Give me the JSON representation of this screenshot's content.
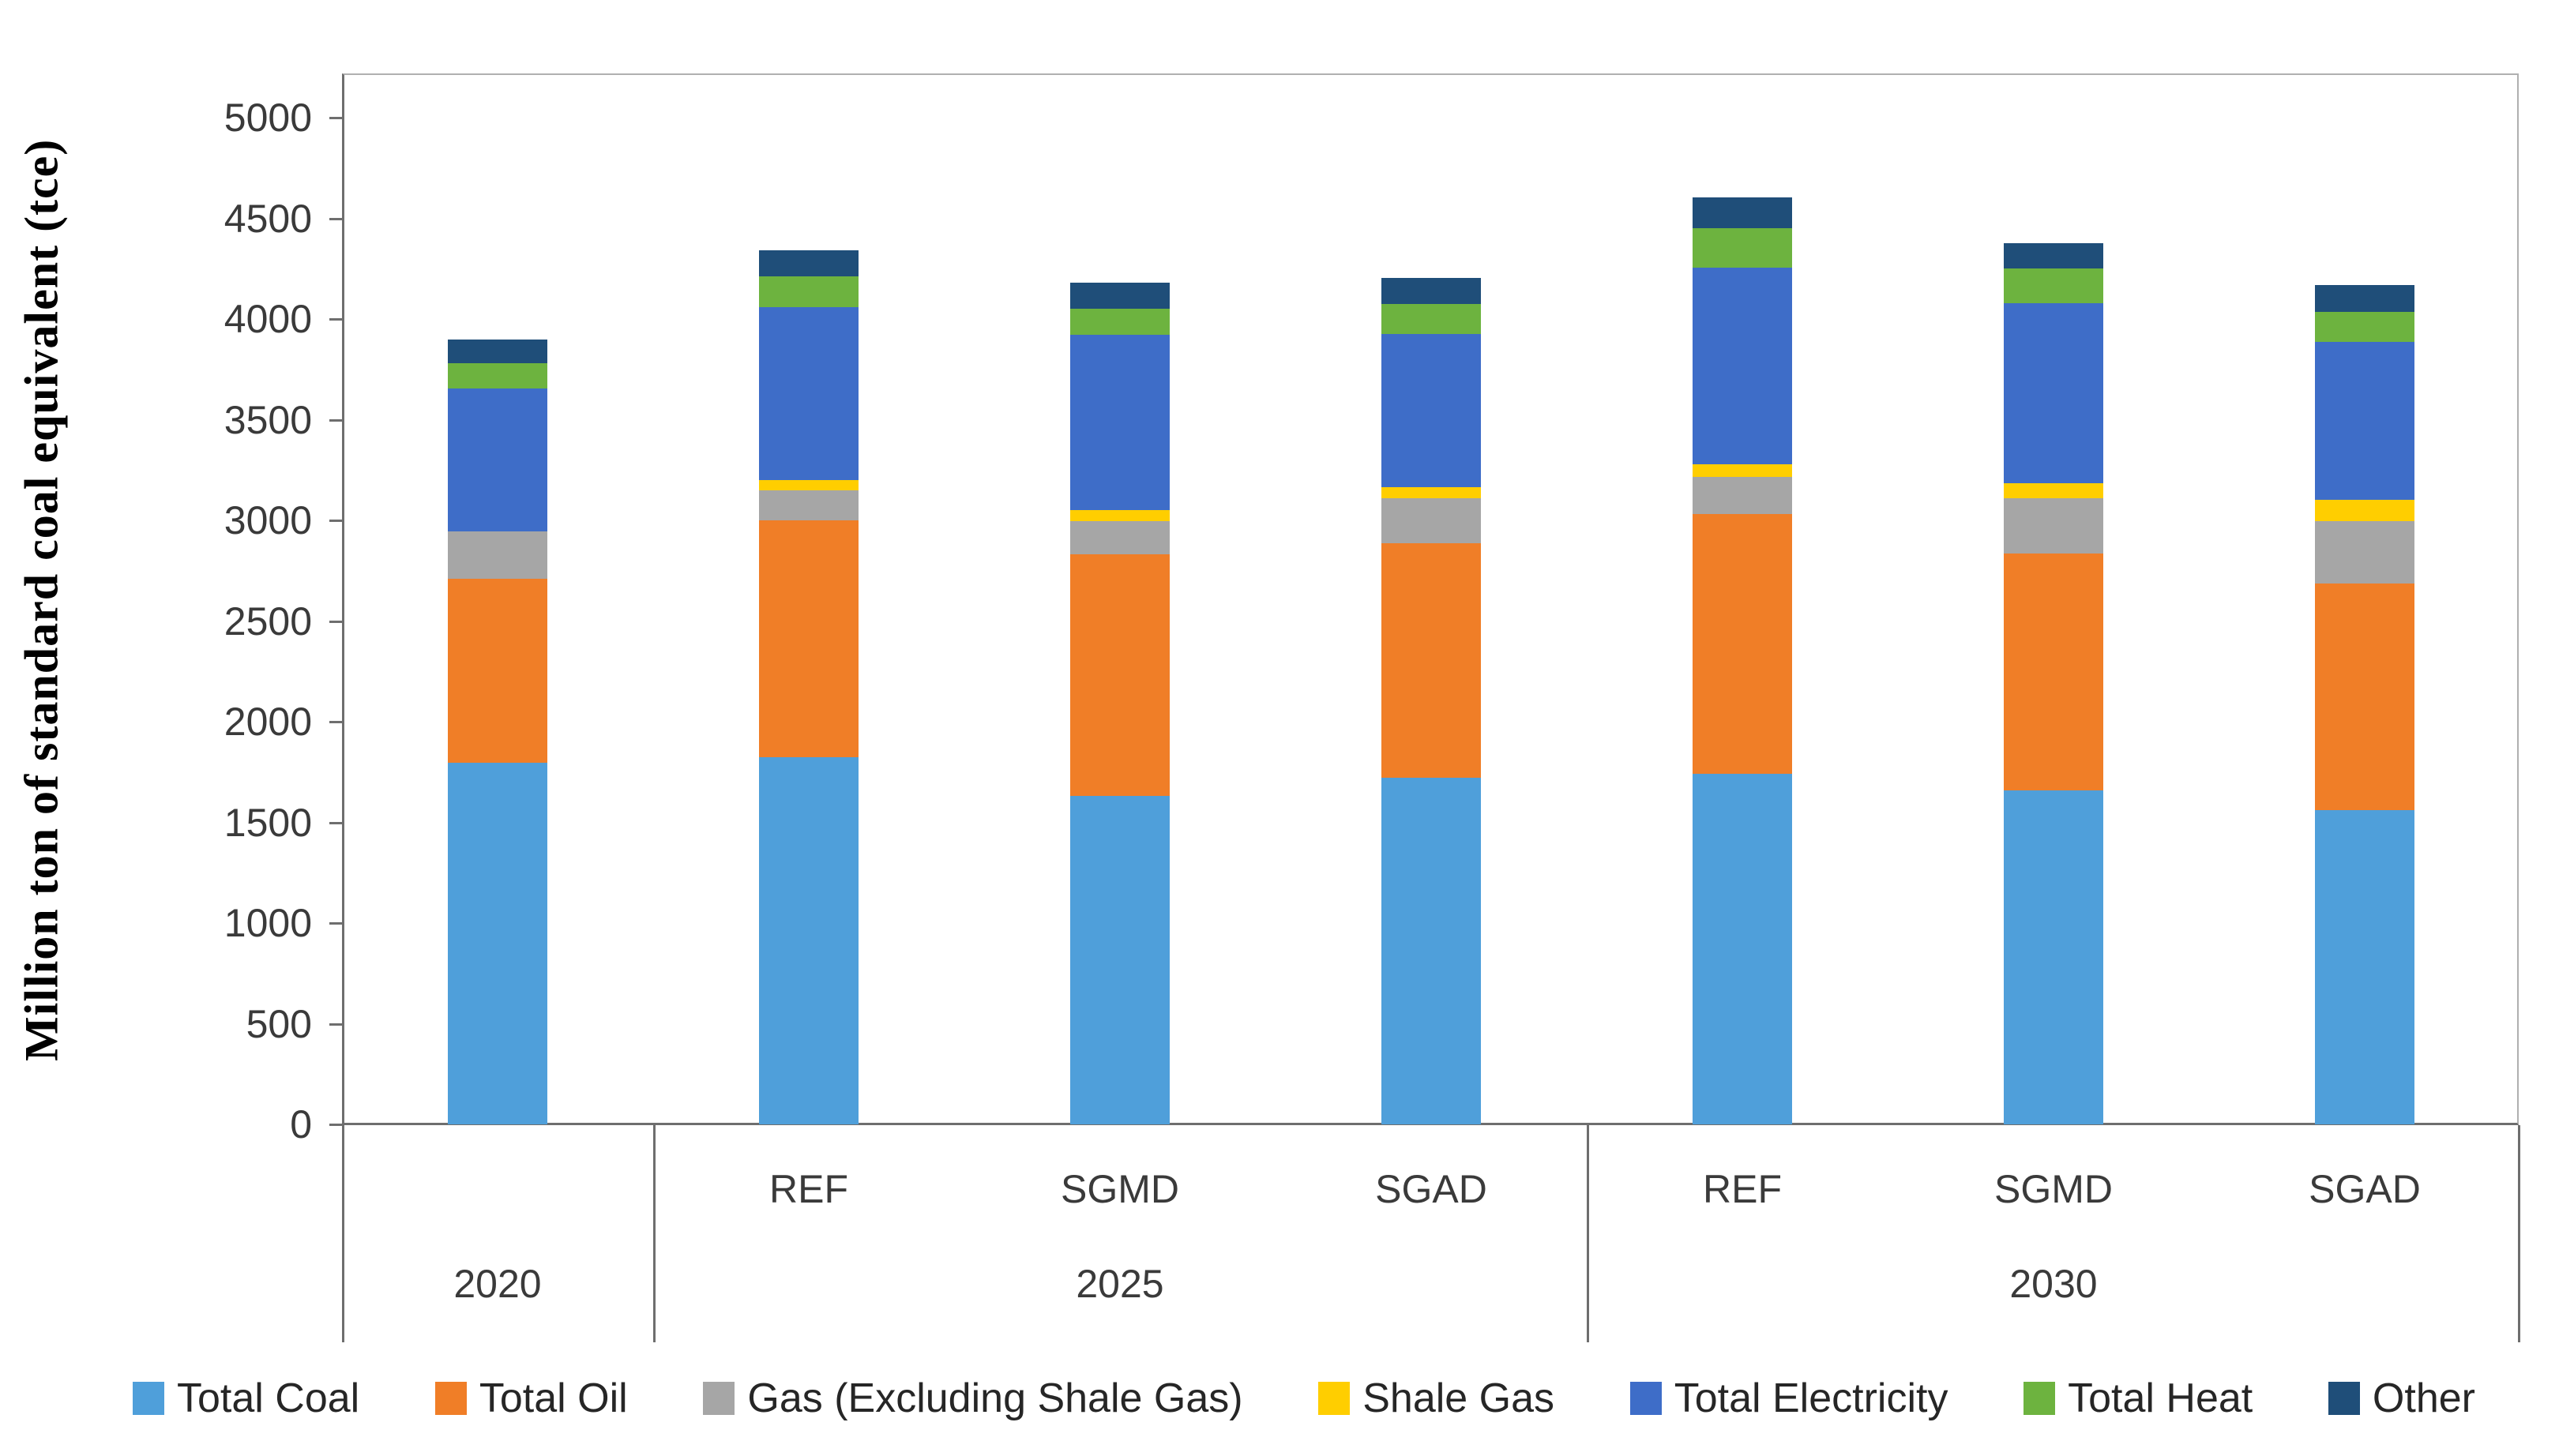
{
  "chart_data": {
    "type": "bar",
    "stacked": true,
    "title": "",
    "ylabel": "Million ton of standard coal equivalent (tce)",
    "xlabel": "",
    "ylim": [
      0,
      5000
    ],
    "ytick_step": 500,
    "yticks": [
      0,
      500,
      1000,
      1500,
      2000,
      2500,
      3000,
      3500,
      4000,
      4500,
      5000
    ],
    "grid": false,
    "legend_position": "bottom",
    "categories": [
      "2020",
      "REF",
      "SGMD",
      "SGAD",
      "REF",
      "SGMD",
      "SGAD"
    ],
    "x_axis": {
      "scenario_row": [
        {
          "label": "REF",
          "slot": 1
        },
        {
          "label": "SGMD",
          "slot": 2
        },
        {
          "label": "SGAD",
          "slot": 3
        },
        {
          "label": "REF",
          "slot": 4
        },
        {
          "label": "SGMD",
          "slot": 5
        },
        {
          "label": "SGAD",
          "slot": 6
        }
      ],
      "year_row": [
        {
          "label": "2020",
          "start_slot": 0,
          "span": 1
        },
        {
          "label": "2025",
          "start_slot": 1,
          "span": 3
        },
        {
          "label": "2030",
          "start_slot": 4,
          "span": 3
        }
      ]
    },
    "series": [
      {
        "name": "Total Coal",
        "color": "#4F9FDA",
        "values": [
          1795,
          1825,
          1630,
          1720,
          1740,
          1660,
          1560
        ]
      },
      {
        "name": "Total Oil",
        "color": "#F07E27",
        "values": [
          915,
          1175,
          1200,
          1165,
          1290,
          1175,
          1125
        ]
      },
      {
        "name": "Gas (Excluding Shale Gas)",
        "color": "#A6A6A6",
        "values": [
          235,
          150,
          165,
          225,
          185,
          275,
          310
        ]
      },
      {
        "name": "Shale Gas",
        "color": "#FFCE00",
        "values": [
          0,
          50,
          55,
          55,
          65,
          75,
          105
        ]
      },
      {
        "name": "Total Electricity",
        "color": "#3E6DC8",
        "values": [
          710,
          860,
          870,
          760,
          975,
          895,
          785
        ]
      },
      {
        "name": "Total Heat",
        "color": "#6DB33F",
        "values": [
          125,
          150,
          130,
          150,
          195,
          170,
          150
        ]
      },
      {
        "name": "Other",
        "color": "#1F4E79",
        "values": [
          120,
          130,
          130,
          130,
          155,
          125,
          135
        ]
      }
    ],
    "bar_totals": [
      3900,
      4340,
      4180,
      4205,
      4605,
      4375,
      4170
    ]
  }
}
